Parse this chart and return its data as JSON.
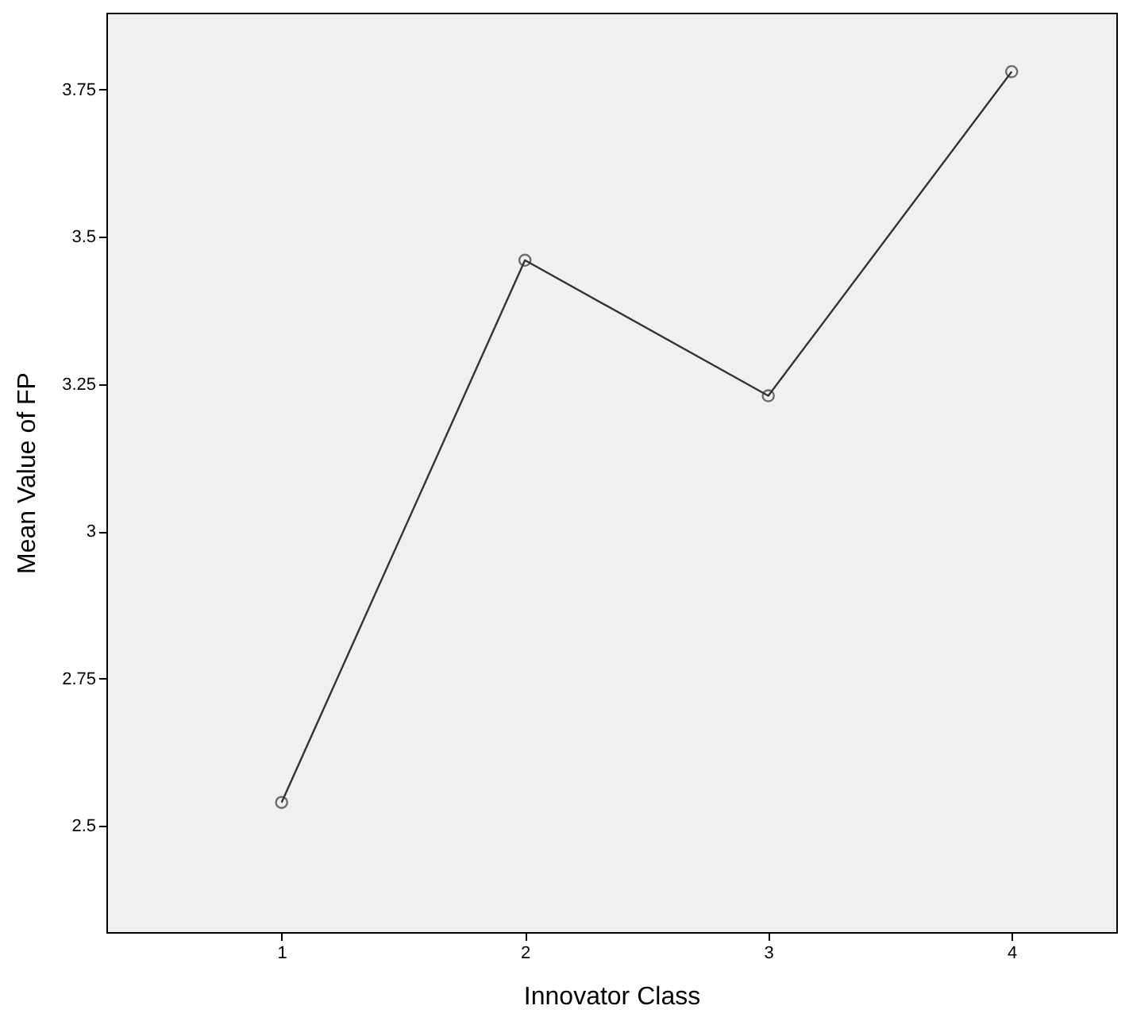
{
  "chart_data": {
    "type": "line",
    "xlabel": "Innovator Class",
    "ylabel": "Mean Value of FP",
    "x": [
      1,
      2,
      3,
      4
    ],
    "series": [
      {
        "color": "#333333",
        "values": [
          2.54,
          3.46,
          3.23,
          3.78
        ]
      }
    ],
    "xlim": [
      0.28,
      4.43
    ],
    "xticks": [
      1,
      2,
      3,
      4
    ],
    "ylim": [
      2.32,
      3.88
    ],
    "yticks": [
      2.5,
      2.75,
      3,
      3.25,
      3.5,
      3.75
    ],
    "marker": "circle",
    "line_style": "solid",
    "grid": false,
    "legend": false
  }
}
